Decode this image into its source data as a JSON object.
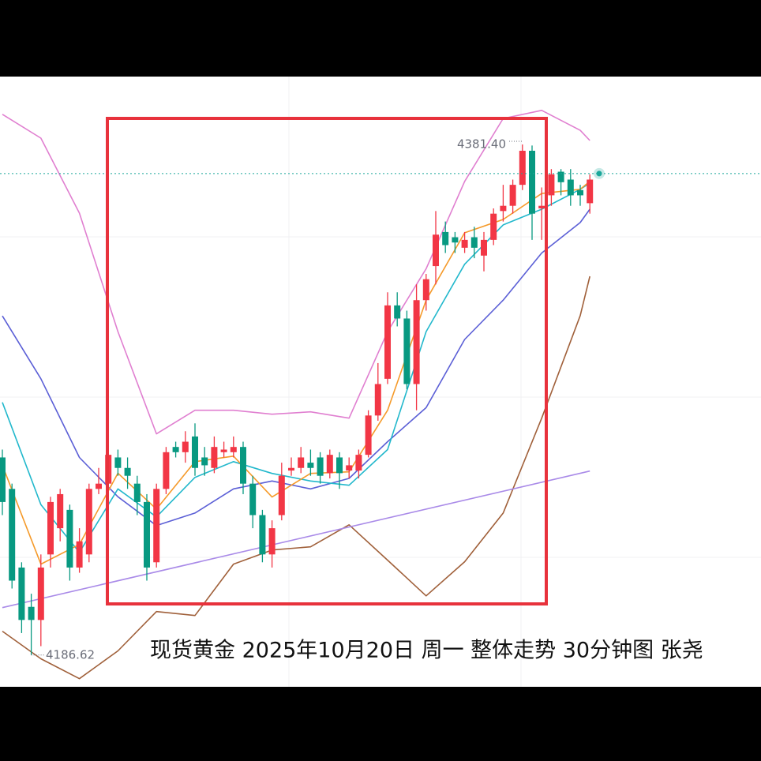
{
  "chart_data": {
    "type": "candlestick",
    "caption": "现货黄金 2025年10月20日 周一 整体走势 30分钟图 张尧",
    "ylim": [
      4174.5,
      4407.3
    ],
    "up_color": "#f23645",
    "down_color": "#089981",
    "open": [
      4262,
      4250,
      4220,
      4205,
      4200,
      4225,
      4235,
      4242,
      4220,
      4225,
      4250,
      4252,
      4262,
      4258,
      4252,
      4245,
      4222,
      4250,
      4266,
      4264,
      4270,
      4262,
      4258,
      4264,
      4264,
      4266,
      4252,
      4240,
      4225,
      4240,
      4257,
      4258,
      4260,
      4262,
      4256,
      4262,
      4257,
      4257,
      4263,
      4278,
      4292,
      4320,
      4315,
      4290,
      4322,
      4335,
      4348,
      4346,
      4342,
      4346,
      4339,
      4345,
      4356,
      4358,
      4366,
      4379,
      4357,
      4362,
      4371,
      4368,
      4364,
      4359
    ],
    "high": [
      4265,
      4252,
      4222,
      4210,
      4225,
      4247,
      4250,
      4244,
      4235,
      4252,
      4258,
      4265,
      4265,
      4262,
      4255,
      4248,
      4252,
      4266,
      4268,
      4272,
      4275,
      4266,
      4270,
      4268,
      4270,
      4268,
      4255,
      4242,
      4238,
      4260,
      4262,
      4266,
      4265,
      4264,
      4265,
      4264,
      4262,
      4265,
      4280,
      4298,
      4325,
      4325,
      4318,
      4328,
      4332,
      4356,
      4352,
      4348,
      4348,
      4350,
      4348,
      4357,
      4366,
      4368,
      4381.4,
      4381,
      4365,
      4372,
      4372,
      4372,
      4366,
      4370
    ],
    "low": [
      4240,
      4212,
      4195,
      4186.62,
      4190,
      4220,
      4230,
      4215,
      4218,
      4222,
      4248,
      4250,
      4255,
      4250,
      4240,
      4215,
      4220,
      4248,
      4262,
      4260,
      4255,
      4255,
      4256,
      4262,
      4262,
      4248,
      4235,
      4222,
      4220,
      4238,
      4255,
      4256,
      4255,
      4252,
      4254,
      4250,
      4254,
      4254,
      4262,
      4276,
      4290,
      4312,
      4288,
      4280,
      4318,
      4328,
      4340,
      4340,
      4340,
      4338,
      4333,
      4343,
      4352,
      4355,
      4364,
      4345,
      4345,
      4358,
      4362,
      4358,
      4358,
      4355
    ],
    "close": [
      4245,
      4215,
      4200,
      4200,
      4220,
      4245,
      4248,
      4220,
      4230,
      4250,
      4252,
      4263,
      4258,
      4255,
      4245,
      4220,
      4250,
      4264,
      4264,
      4268,
      4258,
      4259,
      4266,
      4265,
      4266,
      4252,
      4240,
      4225,
      4235,
      4255,
      4258,
      4262,
      4258,
      4255,
      4263,
      4256,
      4259,
      4263,
      4278,
      4290,
      4320,
      4315,
      4290,
      4322,
      4330,
      4347,
      4343,
      4344,
      4345,
      4342,
      4345,
      4355,
      4358,
      4366,
      4379,
      4355,
      4358,
      4370,
      4367,
      4362,
      4362,
      4368
    ],
    "lines": [
      {
        "color": "#e07fd0",
        "x": [
          0,
          4,
          8,
          12,
          16,
          20,
          24,
          28,
          32,
          36,
          40,
          44,
          48,
          52,
          56,
          60,
          61
        ],
        "values": [
          4392.9,
          4383.8,
          4355.2,
          4310,
          4271,
          4280,
          4280,
          4278.5,
          4279.4,
          4277,
          4310,
          4334,
          4367.3,
          4391.3,
          4394.4,
          4386.8,
          4382.9
        ]
      },
      {
        "color": "#a0603a",
        "x": [
          0,
          4,
          8,
          12,
          16,
          20,
          24,
          28,
          32,
          36,
          40,
          44,
          48,
          52,
          56,
          60,
          61
        ],
        "values": [
          4195.7,
          4185.2,
          4177.6,
          4188.2,
          4203.2,
          4201.7,
          4221.3,
          4226.7,
          4227.9,
          4236.3,
          4222.8,
          4209.2,
          4222.2,
          4240.8,
          4277,
          4316.1,
          4331.1
        ]
      },
      {
        "color": "#5b5fd6",
        "x": [
          0,
          4,
          8,
          12,
          16,
          20,
          24,
          28,
          32,
          36,
          40,
          44,
          48,
          52,
          56,
          60,
          61
        ],
        "values": [
          4316,
          4292,
          4262,
          4247,
          4236,
          4240.8,
          4250,
          4253,
          4250,
          4254,
          4268,
          4281,
          4307,
          4322,
          4340,
          4351.6,
          4356.7
        ]
      },
      {
        "color": "#22b8cc",
        "x": [
          0,
          4,
          8,
          12,
          16,
          20,
          24,
          28,
          32,
          36,
          40,
          44,
          48,
          52,
          56,
          60,
          61
        ],
        "values": [
          4283,
          4244,
          4225.8,
          4250,
          4239.3,
          4254.4,
          4260.4,
          4255.9,
          4253,
          4251.4,
          4265,
          4310,
          4335.7,
          4350.7,
          4356.7,
          4364.3,
          4366.7
        ]
      },
      {
        "color": "#f59a2a",
        "x": [
          0,
          4,
          8,
          12,
          16,
          20,
          24,
          28,
          32,
          36,
          40,
          44,
          48,
          52,
          56,
          60,
          61
        ],
        "values": [
          4259,
          4221.3,
          4228.8,
          4256,
          4242.3,
          4260.4,
          4262.5,
          4246.9,
          4255.9,
          4256.5,
          4280,
          4322,
          4347.7,
          4352.8,
          4362.7,
          4364.3,
          4367.3
        ]
      },
      {
        "color": "#a98ae8",
        "x": [
          0,
          61
        ],
        "values": [
          4204.7,
          4256.8
        ]
      }
    ],
    "price_line": 4370.3,
    "high_label": {
      "value": 4381.4,
      "label": "4381.40"
    },
    "low_label": {
      "value": 4186.62,
      "label": "4186.62"
    }
  }
}
